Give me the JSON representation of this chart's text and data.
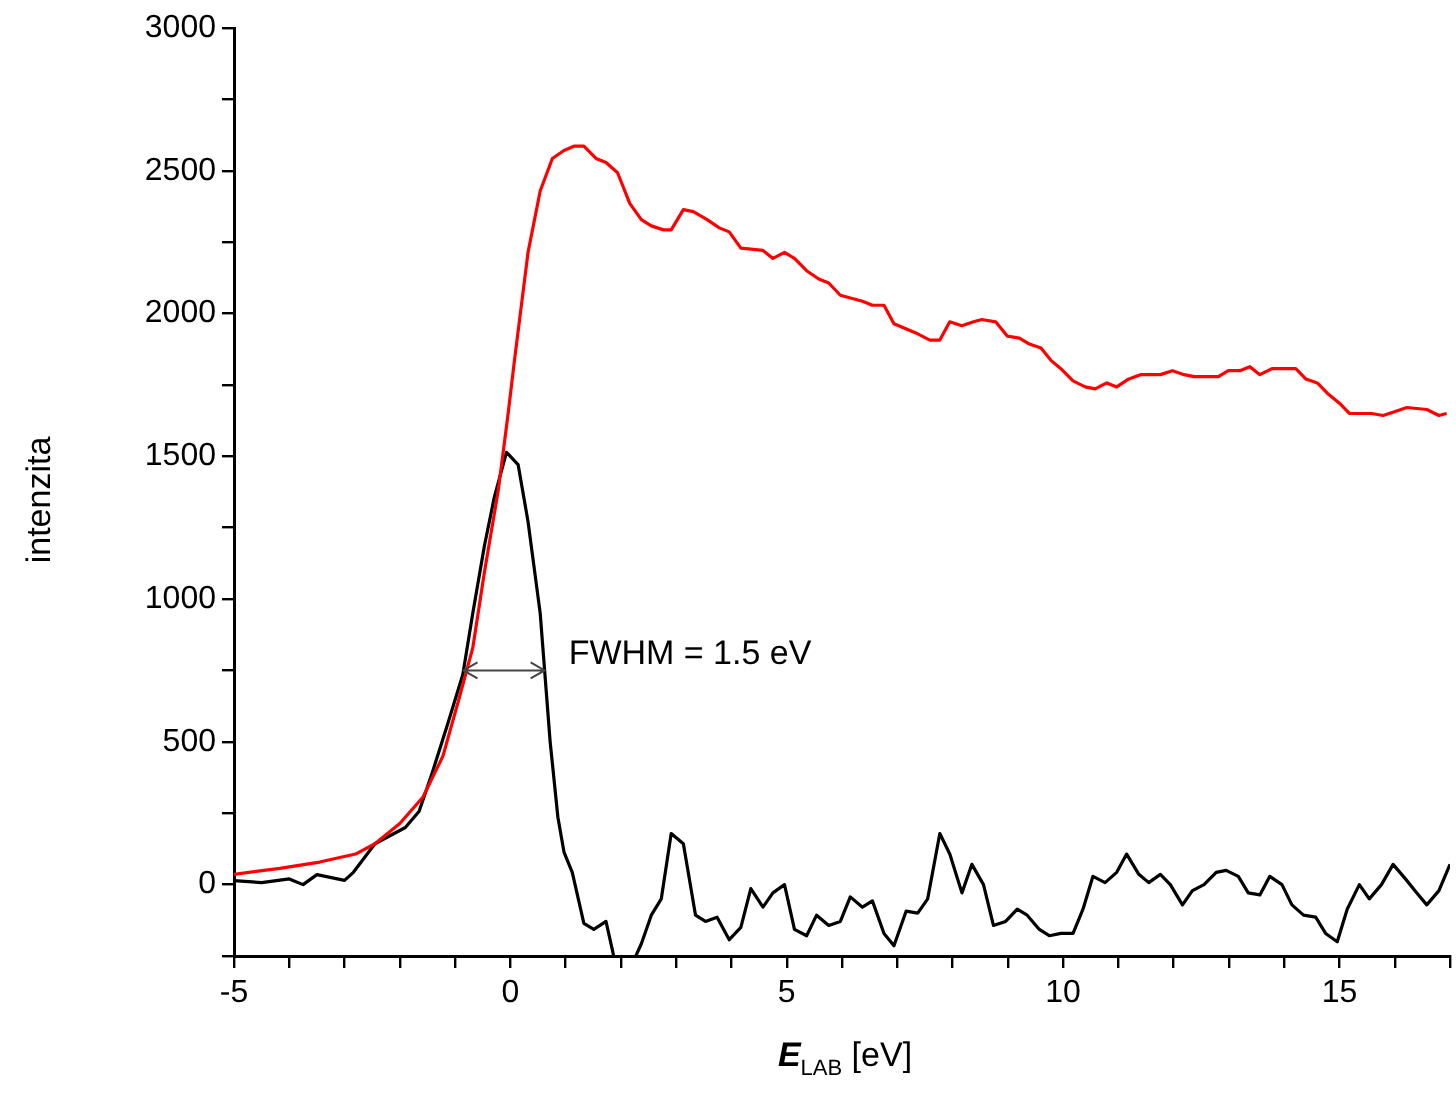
{
  "chart_data": {
    "type": "line",
    "xlabel": "E$_{LAB}$ [eV]",
    "ylabel": "intenzita",
    "xlim": [
      -5,
      17
    ],
    "ylim": [
      -250,
      3000
    ],
    "xticks": [
      -5,
      {
        "value": -4,
        "label": null
      },
      {
        "value": -3,
        "label": null
      },
      {
        "value": -2,
        "label": null
      },
      {
        "value": -1,
        "label": null
      },
      0,
      {
        "value": 1,
        "label": null
      },
      {
        "value": 2,
        "label": null
      },
      {
        "value": 3,
        "label": null
      },
      {
        "value": 4,
        "label": null
      },
      5,
      {
        "value": 6,
        "label": null
      },
      {
        "value": 7,
        "label": null
      },
      {
        "value": 8,
        "label": null
      },
      {
        "value": 9,
        "label": null
      },
      10,
      {
        "value": 11,
        "label": null
      },
      {
        "value": 12,
        "label": null
      },
      {
        "value": 13,
        "label": null
      },
      {
        "value": 14,
        "label": null
      },
      15,
      {
        "value": 16,
        "label": null
      },
      {
        "value": 17,
        "label": null
      }
    ],
    "yticks": [
      {
        "value": -250,
        "label": null
      },
      0,
      {
        "value": 250,
        "label": null
      },
      500,
      {
        "value": 750,
        "label": null
      },
      1000,
      {
        "value": 1250,
        "label": null
      },
      1500,
      {
        "value": 1750,
        "label": null
      },
      2000,
      {
        "value": 2250,
        "label": null
      },
      2500,
      {
        "value": 2750,
        "label": null
      },
      3000
    ],
    "grid": false,
    "legend": false,
    "marker": "none",
    "line_style": "solid",
    "annotations": [
      {
        "text": "FWHM = 1.5 eV",
        "x": 0.62,
        "y": 750
      }
    ],
    "series": [
      {
        "color": "#ff0000",
        "x": [
          -5,
          -4.17,
          -3.45,
          -2.8,
          -2.45,
          -2,
          -1.58,
          -1.22,
          -0.94,
          -0.68,
          -0.47,
          -0.22,
          -0.04,
          0.07,
          0.32,
          0.54,
          0.76,
          0.97,
          1.15,
          1.33,
          1.55,
          1.73,
          1.94,
          2.16,
          2.37,
          2.55,
          2.77,
          2.91,
          3.13,
          3.31,
          3.56,
          3.78,
          3.96,
          4.17,
          4.57,
          4.75,
          4.96,
          5.14,
          5.36,
          5.58,
          5.76,
          5.97,
          6.37,
          6.55,
          6.76,
          6.94,
          7.37,
          7.59,
          7.77,
          7.95,
          8.17,
          8.38,
          8.53,
          8.78,
          8.99,
          9.21,
          9.39,
          9.6,
          9.78,
          9.96,
          10.18,
          10.4,
          10.58,
          10.79,
          10.97,
          11.19,
          11.4,
          11.76,
          11.98,
          12.19,
          12.37,
          12.81,
          12.99,
          13.2,
          13.38,
          13.56,
          13.78,
          14.21,
          14.39,
          14.6,
          14.78,
          15,
          15.18,
          15.58,
          15.79,
          16.01,
          16.22,
          16.58,
          16.8,
          16.94
        ],
        "values": [
          36,
          57,
          79,
          107,
          143,
          214,
          307,
          450,
          643,
          829,
          1093,
          1379,
          1650,
          1829,
          2214,
          2429,
          2543,
          2571,
          2586,
          2586,
          2543,
          2529,
          2493,
          2386,
          2329,
          2307,
          2293,
          2293,
          2364,
          2357,
          2329,
          2300,
          2286,
          2229,
          2221,
          2193,
          2214,
          2193,
          2150,
          2121,
          2107,
          2064,
          2043,
          2029,
          2029,
          1964,
          1929,
          1907,
          1907,
          1971,
          1957,
          1971,
          1979,
          1971,
          1921,
          1914,
          1893,
          1879,
          1836,
          1807,
          1764,
          1743,
          1736,
          1757,
          1743,
          1771,
          1786,
          1786,
          1800,
          1786,
          1779,
          1779,
          1800,
          1800,
          1814,
          1786,
          1807,
          1807,
          1771,
          1757,
          1721,
          1686,
          1650,
          1650,
          1643,
          1657,
          1671,
          1664,
          1643,
          1650
        ]
      },
      {
        "color": "#000000",
        "x": [
          -5,
          -4.5,
          -4,
          -3.75,
          -3.5,
          -3,
          -2.84,
          -2.45,
          -1.9,
          -1.65,
          -1.4,
          -1.12,
          -0.86,
          -0.68,
          -0.47,
          -0.29,
          -0.07,
          0.14,
          0.32,
          0.54,
          0.72,
          0.86,
          0.97,
          1.12,
          1.33,
          1.51,
          1.73,
          1.87,
          2.07,
          2.27,
          2.37,
          2.55,
          2.73,
          2.91,
          3.13,
          3.35,
          3.53,
          3.74,
          3.96,
          4.17,
          4.35,
          4.57,
          4.75,
          4.96,
          5.14,
          5.36,
          5.54,
          5.76,
          5.97,
          6.15,
          6.37,
          6.55,
          6.76,
          6.94,
          7.16,
          7.37,
          7.55,
          7.77,
          7.95,
          8.17,
          8.35,
          8.56,
          8.74,
          8.96,
          9.17,
          9.35,
          9.57,
          9.75,
          9.96,
          10.18,
          10.36,
          10.54,
          10.76,
          10.97,
          11.15,
          11.37,
          11.55,
          11.76,
          11.94,
          12.16,
          12.34,
          12.55,
          12.77,
          12.95,
          13.17,
          13.35,
          13.56,
          13.74,
          13.96,
          14.14,
          14.35,
          14.57,
          14.75,
          14.96,
          15.14,
          15.36,
          15.54,
          15.76,
          15.97,
          16.19,
          16.4,
          16.58,
          16.8,
          17
        ],
        "values": [
          14,
          7,
          20,
          0,
          35,
          15,
          43,
          143,
          200,
          257,
          400,
          571,
          736,
          950,
          1186,
          1357,
          1514,
          1471,
          1271,
          950,
          500,
          236,
          114,
          43,
          -136,
          -157,
          -129,
          -250,
          null,
          -250,
          -207,
          -107,
          -50,
          179,
          143,
          -107,
          -129,
          -114,
          -193,
          -150,
          -14,
          -79,
          -29,
          0,
          -157,
          -179,
          -107,
          -143,
          -129,
          -43,
          -79,
          -57,
          -171,
          -214,
          -93,
          -100,
          -50,
          179,
          107,
          -29,
          71,
          0,
          -143,
          -129,
          -86,
          -107,
          -157,
          -179,
          -171,
          -171,
          -86,
          29,
          7,
          43,
          107,
          36,
          7,
          36,
          0,
          -71,
          -21,
          0,
          43,
          50,
          29,
          -29,
          -36,
          29,
          0,
          -71,
          -107,
          -114,
          -171,
          -200,
          -86,
          0,
          -50,
          0,
          71,
          21,
          -29,
          -71,
          -21,
          71
        ]
      }
    ]
  }
}
